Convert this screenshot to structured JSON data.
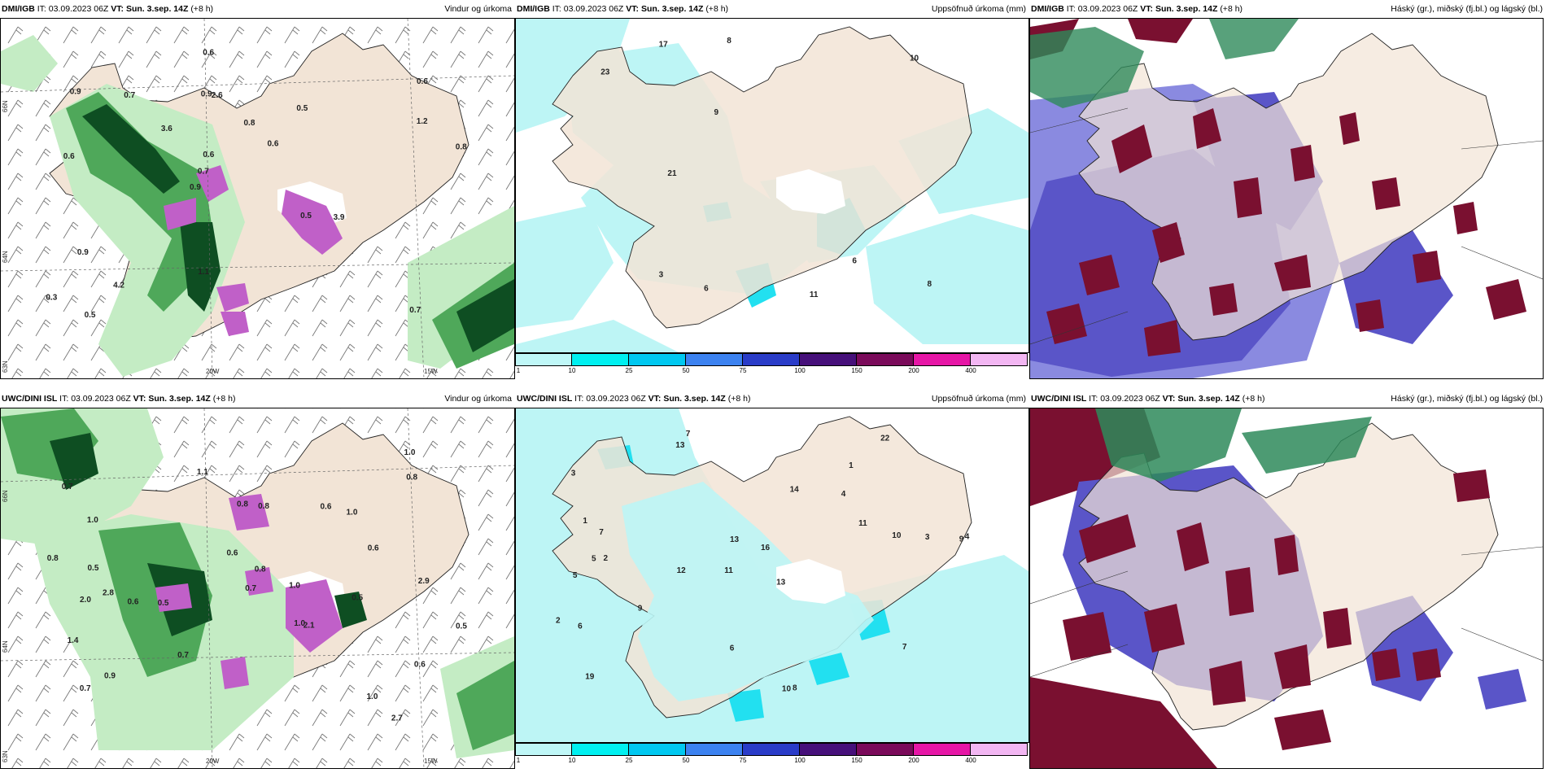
{
  "panels": [
    {
      "id": "p1",
      "model": "DMI/IGB",
      "it_label": "IT:",
      "it": "03.09.2023 06Z",
      "vt_label": "VT:",
      "vt": "Sun. 3.sep. 14Z",
      "lead": "(+8 h)",
      "right": "Vindur og úrkoma"
    },
    {
      "id": "p2",
      "model": "DMI/IGB",
      "it_label": "IT:",
      "it": "03.09.2023 06Z",
      "vt_label": "VT:",
      "vt": "Sun. 3.sep. 14Z",
      "lead": "(+8 h)",
      "right": "Uppsöfnuð úrkoma (mm)"
    },
    {
      "id": "p3",
      "model": "DMI/IGB",
      "it_label": "IT:",
      "it": "03.09.2023 06Z",
      "vt_label": "VT:",
      "vt": "Sun. 3.sep. 14Z",
      "lead": "(+8 h)",
      "right": "Háský (gr.), miðský (fj.bl.) og lágský (bl.)"
    },
    {
      "id": "p4",
      "model": "UWC/DINI ISL",
      "it_label": "IT:",
      "it": "03.09.2023 06Z",
      "vt_label": "VT:",
      "vt": "Sun. 3.sep. 14Z",
      "lead": "(+8 h)",
      "right": "Vindur og úrkoma"
    },
    {
      "id": "p5",
      "model": "UWC/DINI ISL",
      "it_label": "IT:",
      "it": "03.09.2023 06Z",
      "vt_label": "VT:",
      "vt": "Sun. 3.sep. 14Z",
      "lead": "(+8 h)",
      "right": "Uppsöfnuð úrkoma (mm)"
    },
    {
      "id": "p6",
      "model": "UWC/DINI ISL",
      "it_label": "IT:",
      "it": "03.09.2023 06Z",
      "vt_label": "VT:",
      "vt": "Sun. 3.sep. 14Z",
      "lead": "(+8 h)",
      "right": "Háský (gr.), miðský (fj.bl.) og lágský (bl.)"
    }
  ],
  "axis_ticks": {
    "lon_20": "20W",
    "lon_15": "15W",
    "lat_66": "66N",
    "lat_64": "64N",
    "lat_63": "63N"
  },
  "colorbar": {
    "ticks": [
      "1",
      "10",
      "25",
      "50",
      "75",
      "100",
      "150",
      "200",
      "400"
    ],
    "colors": [
      "#bff7f7",
      "#00f0f0",
      "#00c8f0",
      "#3c82f0",
      "#2a3cc8",
      "#46107a",
      "#7a0a5a",
      "#e616a6",
      "#f2b6f2"
    ]
  },
  "colors": {
    "land": "#f2e4d6",
    "precip_light": "#c4ecc4",
    "precip_mid": "#4fa85a",
    "precip_dark": "#0e4e22",
    "precip_heavy": "#c060c8",
    "accum_light": "#bdf5f5",
    "accum_mid": "#22e0f0",
    "cloud_high": "#2e8a5a",
    "cloud_mid": "#5a55c8",
    "cloud_low": "#7a1030"
  },
  "labels": {
    "p1": [
      "0.7",
      "0.6",
      "0.6",
      "0.9",
      "0.5",
      "0.5",
      "0.9",
      "0.8",
      "0.9",
      "3.6",
      "0.3",
      "4.2",
      "2.6",
      "0.6",
      "3.9",
      "0.9",
      "0.6",
      "0.8",
      "0.5",
      "1.2",
      "0.7",
      "1.1",
      "0.6",
      "0.7"
    ],
    "p2": [
      "6",
      "11",
      "3",
      "6",
      "17",
      "23",
      "21",
      "8",
      "8",
      "9",
      "10"
    ],
    "p4": [
      "2.7",
      "2.8",
      "1.0",
      "0.7",
      "0.6",
      "1.0",
      "0.9",
      "0.5",
      "1.0",
      "0.8",
      "0.6",
      "1.0",
      "0.7",
      "1.1",
      "1.0",
      "1.4",
      "0.5",
      "0.8",
      "0.8",
      "0.7",
      "1.0",
      "0.8",
      "0.6",
      "0.5",
      "2.9",
      "0.5",
      "0.6",
      "0.7",
      "0.6",
      "0.8",
      "2.1",
      "2.0"
    ],
    "p5": [
      "7",
      "1",
      "9",
      "11",
      "13",
      "2",
      "3",
      "4",
      "5",
      "14",
      "16",
      "19",
      "13",
      "12",
      "10",
      "8",
      "6",
      "22",
      "11",
      "9",
      "7",
      "5",
      "4",
      "3",
      "2",
      "1",
      "13",
      "10",
      "7",
      "6"
    ]
  }
}
